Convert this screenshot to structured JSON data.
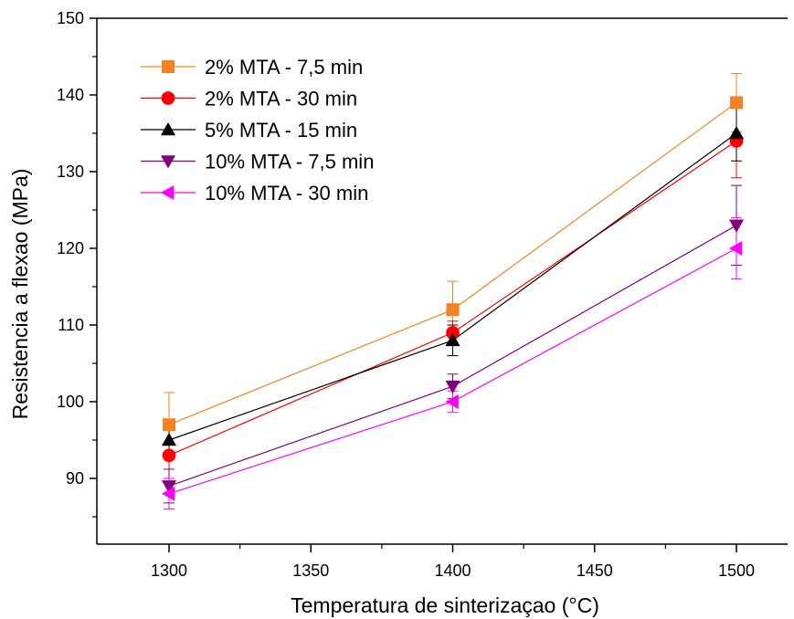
{
  "chart_data": {
    "type": "line",
    "xlabel": "Temperatura de sinterizaçao (°C)",
    "ylabel": "Resistencia a flexao (MPa)",
    "xlim": [
      1275,
      1520
    ],
    "ylim": [
      81,
      150
    ],
    "x_ticks": [
      1300,
      1350,
      1400,
      1450,
      1500
    ],
    "y_ticks": [
      90,
      100,
      110,
      120,
      130,
      140,
      150
    ],
    "grid": false,
    "legend_position": "top-left",
    "x": [
      1300,
      1400,
      1500
    ],
    "series": [
      {
        "name": "2% MTA - 7,5 min",
        "color": "#f58220",
        "marker": "square",
        "values": [
          97,
          112,
          139
        ],
        "errors": [
          4.2,
          3.7,
          3.8
        ]
      },
      {
        "name": "2% MTA - 30 min",
        "color": "#ff0000",
        "marker": "circle",
        "values": [
          93,
          109,
          134
        ],
        "errors": [
          3.5,
          1.5,
          4.8
        ]
      },
      {
        "name": "5% MTA - 15 min",
        "color": "#000000",
        "marker": "triangle-up",
        "values": [
          95,
          108,
          135
        ],
        "errors": [
          2.0,
          2.0,
          3.6
        ]
      },
      {
        "name": "10% MTA - 7,5 min",
        "color": "#800080",
        "marker": "triangle-down",
        "values": [
          89,
          102,
          123
        ],
        "errors": [
          2.2,
          1.6,
          5.2
        ]
      },
      {
        "name": "10% MTA - 30 min",
        "color": "#ff00ff",
        "marker": "triangle-left",
        "values": [
          88,
          100,
          120
        ],
        "errors": [
          2.0,
          1.4,
          4.0
        ]
      }
    ]
  }
}
